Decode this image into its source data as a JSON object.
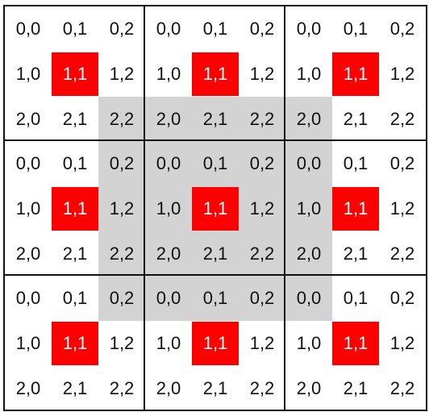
{
  "diagram": {
    "blocks": [
      {
        "row": 0,
        "col": 0,
        "cells": [
          [
            "0,0",
            "0,1",
            "0,2"
          ],
          [
            "1,0",
            "1,1",
            "1,2"
          ],
          [
            "2,0",
            "2,1",
            "2,2"
          ]
        ]
      },
      {
        "row": 0,
        "col": 1,
        "cells": [
          [
            "0,0",
            "0,1",
            "0,2"
          ],
          [
            "1,0",
            "1,1",
            "1,2"
          ],
          [
            "2,0",
            "2,1",
            "2,2"
          ]
        ]
      },
      {
        "row": 0,
        "col": 2,
        "cells": [
          [
            "0,0",
            "0,1",
            "0,2"
          ],
          [
            "1,0",
            "1,1",
            "1,2"
          ],
          [
            "2,0",
            "2,1",
            "2,2"
          ]
        ]
      },
      {
        "row": 1,
        "col": 0,
        "cells": [
          [
            "0,0",
            "0,1",
            "0,2"
          ],
          [
            "1,0",
            "1,1",
            "1,2"
          ],
          [
            "2,0",
            "2,1",
            "2,2"
          ]
        ]
      },
      {
        "row": 1,
        "col": 1,
        "cells": [
          [
            "0,0",
            "0,1",
            "0,2"
          ],
          [
            "1,0",
            "1,1",
            "1,2"
          ],
          [
            "2,0",
            "2,1",
            "2,2"
          ]
        ]
      },
      {
        "row": 1,
        "col": 2,
        "cells": [
          [
            "0,0",
            "0,1",
            "0,2"
          ],
          [
            "1,0",
            "1,1",
            "1,2"
          ],
          [
            "2,0",
            "2,1",
            "2,2"
          ]
        ]
      },
      {
        "row": 2,
        "col": 0,
        "cells": [
          [
            "0,0",
            "0,1",
            "0,2"
          ],
          [
            "1,0",
            "1,1",
            "1,2"
          ],
          [
            "2,0",
            "2,1",
            "2,2"
          ]
        ]
      },
      {
        "row": 2,
        "col": 1,
        "cells": [
          [
            "0,0",
            "0,1",
            "0,2"
          ],
          [
            "1,0",
            "1,1",
            "1,2"
          ],
          [
            "2,0",
            "2,1",
            "2,2"
          ]
        ]
      },
      {
        "row": 2,
        "col": 2,
        "cells": [
          [
            "0,0",
            "0,1",
            "0,2"
          ],
          [
            "1,0",
            "1,1",
            "1,2"
          ],
          [
            "2,0",
            "2,1",
            "2,2"
          ]
        ]
      }
    ],
    "highlight_cell": "1,1",
    "colors": {
      "highlight": "#ff0000",
      "band": "#d3d3d3",
      "border": "#111111",
      "background": "#ffffff"
    }
  }
}
